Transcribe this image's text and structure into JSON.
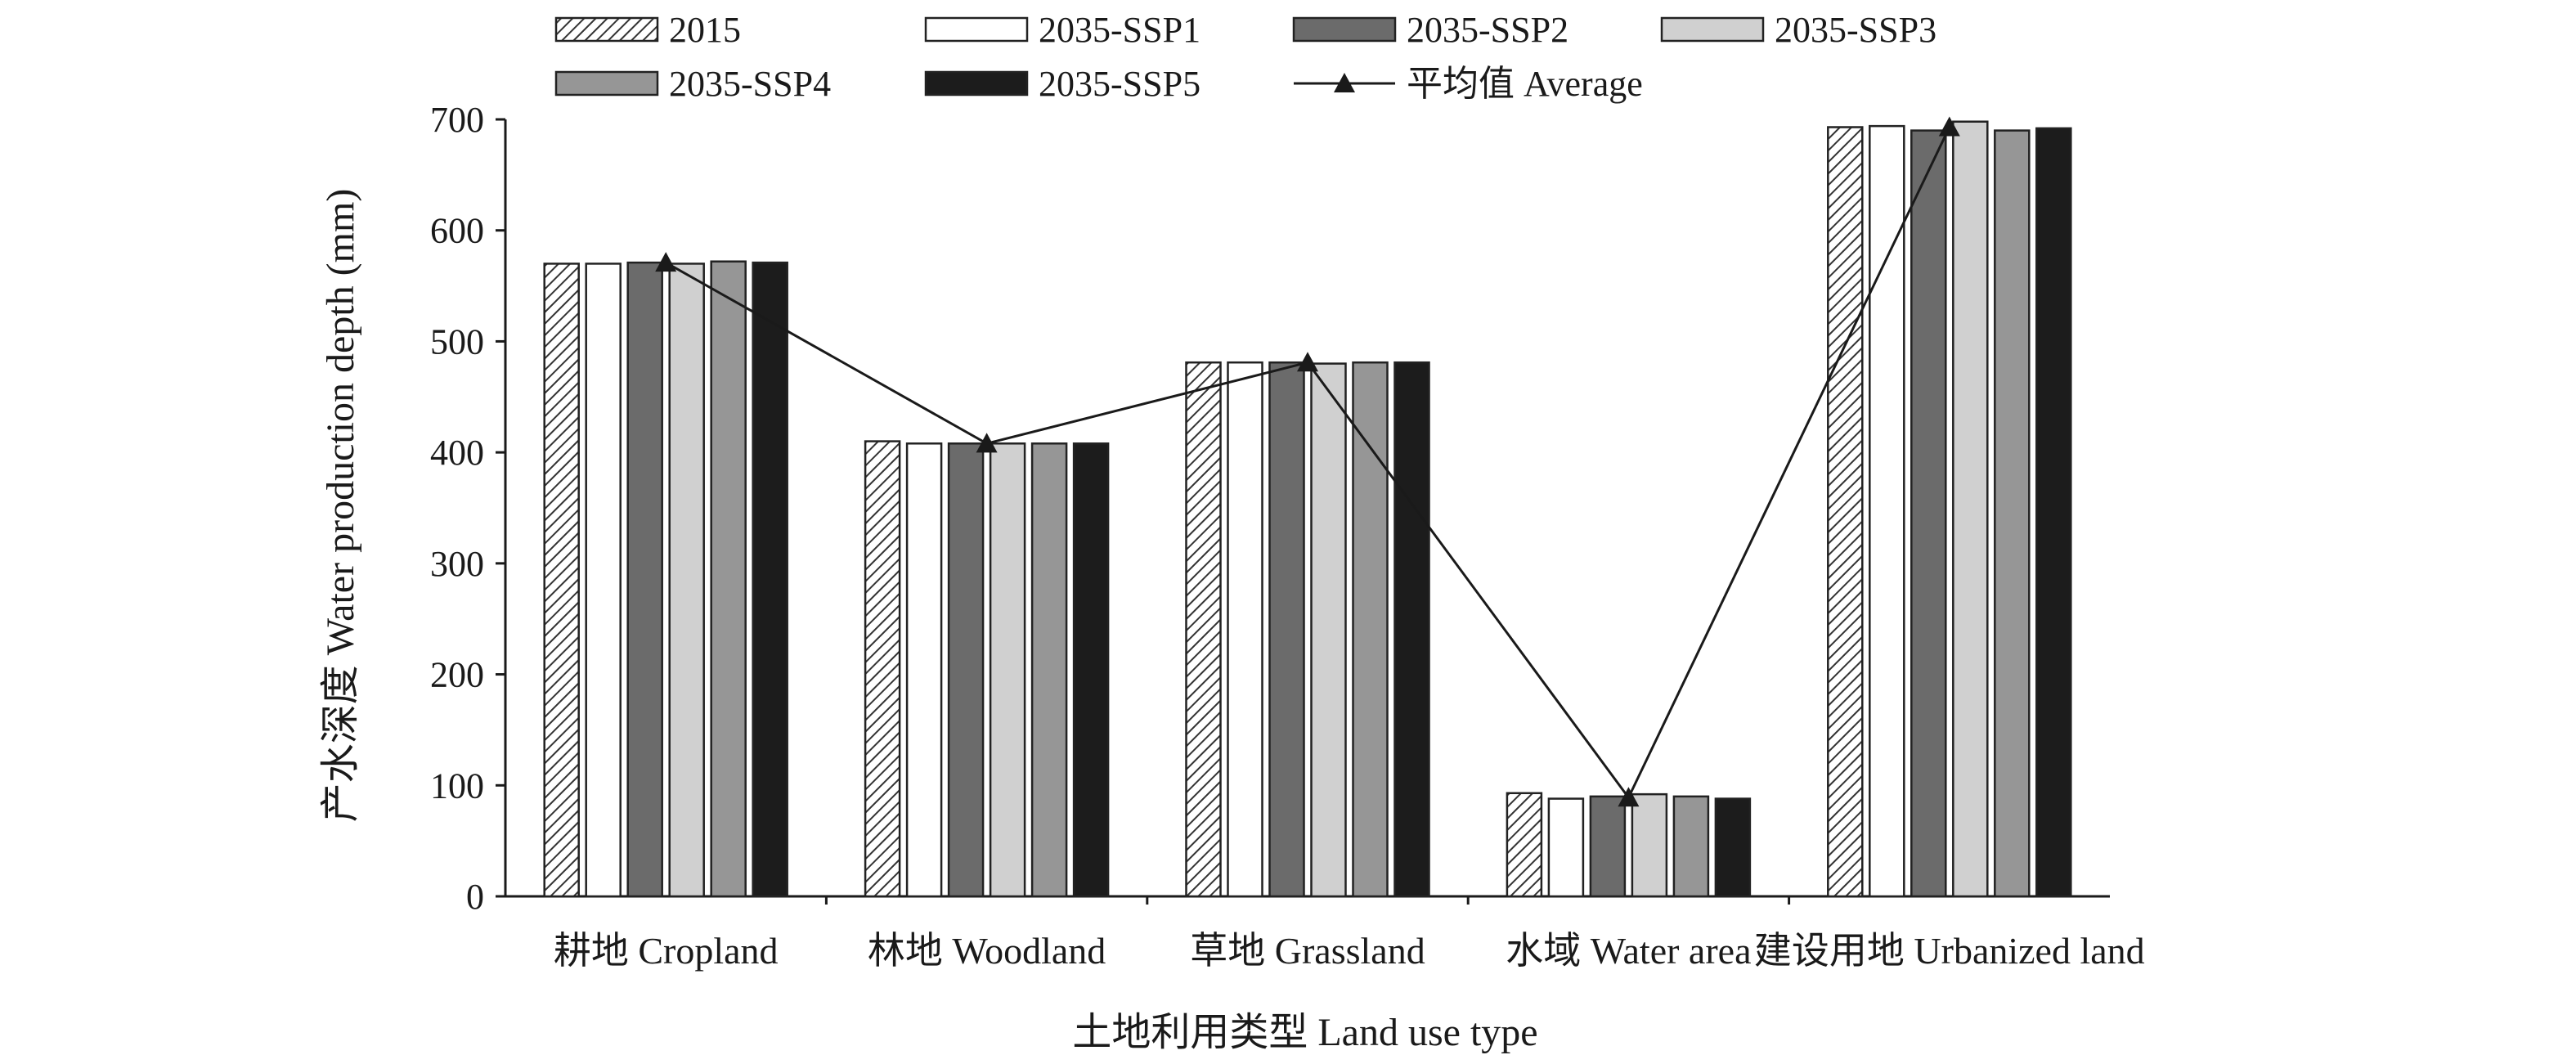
{
  "chart_data": {
    "type": "bar",
    "categories": [
      "耕地 Cropland",
      "林地 Woodland",
      "草地 Grassland",
      "水域 Water area",
      "建设用地 Urbanized land"
    ],
    "series": [
      {
        "name": "2015",
        "values": [
          570,
          410,
          481,
          93,
          693
        ],
        "color": "#ffffff",
        "pattern": "hatch"
      },
      {
        "name": "2035-SSP1",
        "values": [
          570,
          408,
          481,
          88,
          694
        ],
        "color": "#ffffff"
      },
      {
        "name": "2035-SSP2",
        "values": [
          571,
          408,
          481,
          90,
          690
        ],
        "color": "#6b6b6b"
      },
      {
        "name": "2035-SSP3",
        "values": [
          570,
          408,
          480,
          92,
          698
        ],
        "color": "#d0d0d0"
      },
      {
        "name": "2035-SSP4",
        "values": [
          572,
          408,
          481,
          90,
          690
        ],
        "color": "#969696"
      },
      {
        "name": "2035-SSP5",
        "values": [
          571,
          408,
          481,
          88,
          692
        ],
        "color": "#1c1c1c"
      }
    ],
    "line_series": {
      "name": "平均值 Average",
      "values": [
        571,
        408,
        481,
        89,
        693
      ],
      "marker": "triangle",
      "color": "#1a1a1a"
    },
    "xlabel": "土地利用类型 Land use type",
    "ylabel": "产水深度 Water production depth (mm)",
    "ylim": [
      0,
      700
    ],
    "yticks": [
      "0",
      "100",
      "200",
      "300",
      "400",
      "500",
      "600",
      "700"
    ],
    "grid": false,
    "legend_position": "top"
  }
}
